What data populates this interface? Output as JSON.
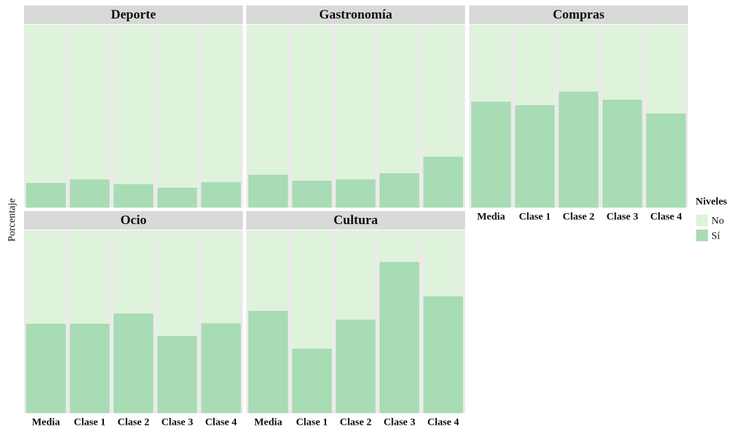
{
  "chart_data": {
    "type": "bar",
    "stacked": true,
    "ylabel": "Porcentaje",
    "legend_title": "Niveles",
    "ylim": [
      0,
      100
    ],
    "categories": [
      "Media",
      "Clase 1",
      "Clase 2",
      "Clase 3",
      "Clase 4"
    ],
    "levels": [
      {
        "name": "No",
        "color": "#dff2dc"
      },
      {
        "name": "Sí",
        "color": "#a8dcb5"
      }
    ],
    "facets": [
      {
        "title": "Deporte",
        "series": [
          {
            "values": [
              86.5,
              84.6,
              87.2,
              89.1,
              86.1
            ]
          },
          {
            "values": [
              13.5,
              15.4,
              12.8,
              10.9,
              13.9
            ]
          }
        ]
      },
      {
        "title": "Gastronomía",
        "series": [
          {
            "values": [
              82.0,
              85.3,
              84.6,
              81.2,
              72.2
            ]
          },
          {
            "values": [
              18.0,
              14.7,
              15.4,
              18.8,
              27.8
            ]
          }
        ]
      },
      {
        "title": "Compras",
        "series": [
          {
            "values": [
              42.1,
              44.0,
              36.5,
              41.0,
              48.5
            ]
          },
          {
            "values": [
              57.9,
              56.0,
              63.5,
              59.0,
              51.5
            ]
          }
        ]
      },
      {
        "title": "Ocio",
        "series": [
          {
            "values": [
              51.1,
              51.1,
              45.5,
              57.9,
              50.8
            ]
          },
          {
            "values": [
              48.9,
              48.9,
              54.5,
              42.1,
              49.2
            ]
          }
        ]
      },
      {
        "title": "Cultura",
        "series": [
          {
            "values": [
              44.0,
              64.7,
              48.9,
              17.3,
              36.1
            ]
          },
          {
            "values": [
              56.0,
              35.3,
              51.1,
              82.7,
              63.9
            ]
          }
        ]
      }
    ]
  }
}
